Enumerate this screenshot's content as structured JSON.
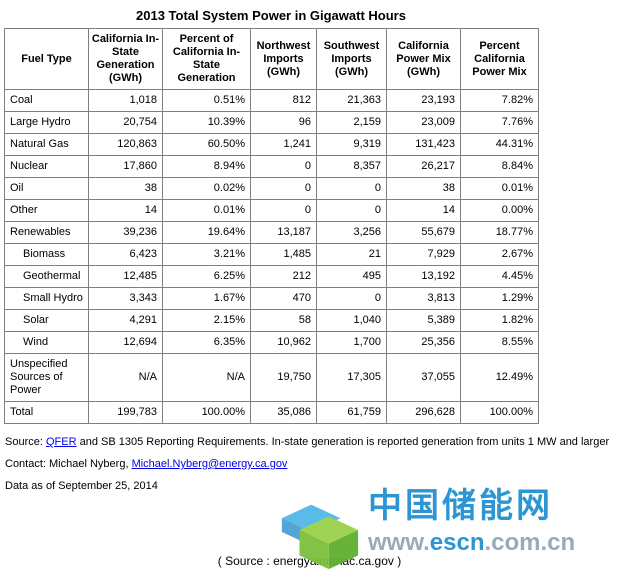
{
  "title": "2013 Total System Power in Gigawatt Hours",
  "chart_data": {
    "type": "table",
    "title": "2013 Total System Power in Gigawatt Hours",
    "columns": [
      "Fuel Type",
      "California In-State Generation (GWh)",
      "Percent of California In-State Generation",
      "Northwest Imports (GWh)",
      "Southwest Imports (GWh)",
      "California Power Mix (GWh)",
      "Percent California Power Mix"
    ],
    "rows": [
      {
        "fuel": "Coal",
        "indent": false,
        "values": [
          "1,018",
          "0.51%",
          "812",
          "21,363",
          "23,193",
          "7.82%"
        ]
      },
      {
        "fuel": "Large Hydro",
        "indent": false,
        "values": [
          "20,754",
          "10.39%",
          "96",
          "2,159",
          "23,009",
          "7.76%"
        ]
      },
      {
        "fuel": "Natural Gas",
        "indent": false,
        "values": [
          "120,863",
          "60.50%",
          "1,241",
          "9,319",
          "131,423",
          "44.31%"
        ]
      },
      {
        "fuel": "Nuclear",
        "indent": false,
        "values": [
          "17,860",
          "8.94%",
          "0",
          "8,357",
          "26,217",
          "8.84%"
        ]
      },
      {
        "fuel": "Oil",
        "indent": false,
        "values": [
          "38",
          "0.02%",
          "0",
          "0",
          "38",
          "0.01%"
        ]
      },
      {
        "fuel": "Other",
        "indent": false,
        "values": [
          "14",
          "0.01%",
          "0",
          "0",
          "14",
          "0.00%"
        ]
      },
      {
        "fuel": "Renewables",
        "indent": false,
        "values": [
          "39,236",
          "19.64%",
          "13,187",
          "3,256",
          "55,679",
          "18.77%"
        ]
      },
      {
        "fuel": "Biomass",
        "indent": true,
        "values": [
          "6,423",
          "3.21%",
          "1,485",
          "21",
          "7,929",
          "2.67%"
        ]
      },
      {
        "fuel": "Geothermal",
        "indent": true,
        "values": [
          "12,485",
          "6.25%",
          "212",
          "495",
          "13,192",
          "4.45%"
        ]
      },
      {
        "fuel": "Small Hydro",
        "indent": true,
        "values": [
          "3,343",
          "1.67%",
          "470",
          "0",
          "3,813",
          "1.29%"
        ]
      },
      {
        "fuel": "Solar",
        "indent": true,
        "values": [
          "4,291",
          "2.15%",
          "58",
          "1,040",
          "5,389",
          "1.82%"
        ]
      },
      {
        "fuel": "Wind",
        "indent": true,
        "values": [
          "12,694",
          "6.35%",
          "10,962",
          "1,700",
          "25,356",
          "8.55%"
        ]
      },
      {
        "fuel": "Unspecified Sources of Power",
        "indent": false,
        "values": [
          "N/A",
          "N/A",
          "19,750",
          "17,305",
          "37,055",
          "12.49%"
        ]
      },
      {
        "fuel": "Total",
        "indent": false,
        "values": [
          "199,783",
          "100.00%",
          "35,086",
          "61,759",
          "296,628",
          "100.00%"
        ]
      }
    ]
  },
  "footer": {
    "source_prefix": "Source: ",
    "source_link": "QFER",
    "source_suffix": " and SB 1305 Reporting Requirements. In-state generation is reported generation from units 1 MW and larger",
    "contact_prefix": "Contact: Michael Nyberg, ",
    "contact_link": "Michael.Nyberg@energy.ca.gov",
    "data_as_of": "Data as of September 25, 2014",
    "bottom_source": "( Source : energyalmanac.ca.gov )"
  },
  "watermark": {
    "site_name": "中国储能网",
    "url_prefix": "www.",
    "url_highlight": "escn",
    "url_suffix": ".com.cn",
    "colors": {
      "blue": "#2291d0",
      "green": "#7fc241",
      "gray": "#97a6b0"
    }
  }
}
